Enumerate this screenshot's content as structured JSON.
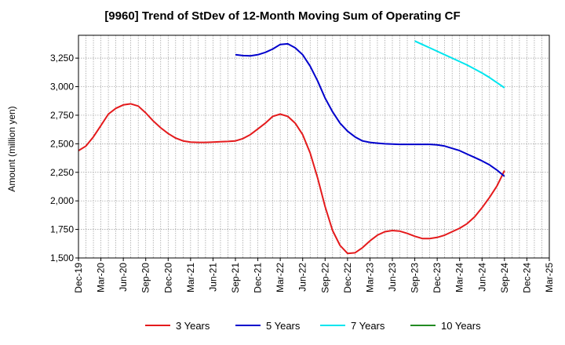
{
  "title": "[9960]  Trend of StDev of 12-Month Moving Sum of Operating CF",
  "chart_data": {
    "type": "line",
    "title": "[9960]  Trend of StDev of 12-Month Moving Sum of Operating CF",
    "xlabel": "",
    "ylabel": "Amount (million yen)",
    "ylim": [
      1500,
      3450
    ],
    "yticks": [
      1500,
      1750,
      2000,
      2250,
      2500,
      2750,
      3000,
      3250
    ],
    "ytick_labels": [
      "1,500",
      "1,750",
      "2,000",
      "2,250",
      "2,500",
      "2,750",
      "3,000",
      "3,250"
    ],
    "x_range": [
      "2019-12",
      "2025-03"
    ],
    "xtick_labels": [
      "Dec-19",
      "Mar-20",
      "Jun-20",
      "Sep-20",
      "Dec-20",
      "Mar-21",
      "Jun-21",
      "Sep-21",
      "Dec-21",
      "Mar-22",
      "Jun-22",
      "Sep-22",
      "Dec-22",
      "Mar-23",
      "Jun-23",
      "Sep-23",
      "Dec-23",
      "Mar-24",
      "Jun-24",
      "Sep-24",
      "Dec-24",
      "Mar-25"
    ],
    "grid": true,
    "legend_position": "bottom",
    "series": [
      {
        "name": "3 Years",
        "color": "#e41a1c",
        "values": [
          [
            "2019-12",
            2440
          ],
          [
            "2020-01",
            2480
          ],
          [
            "2020-02",
            2560
          ],
          [
            "2020-03",
            2660
          ],
          [
            "2020-04",
            2760
          ],
          [
            "2020-05",
            2810
          ],
          [
            "2020-06",
            2840
          ],
          [
            "2020-07",
            2850
          ],
          [
            "2020-08",
            2830
          ],
          [
            "2020-09",
            2770
          ],
          [
            "2020-10",
            2700
          ],
          [
            "2020-11",
            2640
          ],
          [
            "2020-12",
            2590
          ],
          [
            "2021-01",
            2550
          ],
          [
            "2021-02",
            2525
          ],
          [
            "2021-03",
            2515
          ],
          [
            "2021-04",
            2512
          ],
          [
            "2021-05",
            2512
          ],
          [
            "2021-06",
            2515
          ],
          [
            "2021-07",
            2518
          ],
          [
            "2021-08",
            2520
          ],
          [
            "2021-09",
            2525
          ],
          [
            "2021-10",
            2545
          ],
          [
            "2021-11",
            2580
          ],
          [
            "2021-12",
            2630
          ],
          [
            "2022-01",
            2680
          ],
          [
            "2022-02",
            2740
          ],
          [
            "2022-03",
            2760
          ],
          [
            "2022-04",
            2740
          ],
          [
            "2022-05",
            2680
          ],
          [
            "2022-06",
            2580
          ],
          [
            "2022-07",
            2420
          ],
          [
            "2022-08",
            2200
          ],
          [
            "2022-09",
            1950
          ],
          [
            "2022-10",
            1740
          ],
          [
            "2022-11",
            1610
          ],
          [
            "2022-12",
            1540
          ],
          [
            "2023-01",
            1545
          ],
          [
            "2023-02",
            1590
          ],
          [
            "2023-03",
            1650
          ],
          [
            "2023-04",
            1700
          ],
          [
            "2023-05",
            1730
          ],
          [
            "2023-06",
            1740
          ],
          [
            "2023-07",
            1735
          ],
          [
            "2023-08",
            1715
          ],
          [
            "2023-09",
            1690
          ],
          [
            "2023-10",
            1670
          ],
          [
            "2023-11",
            1670
          ],
          [
            "2023-12",
            1680
          ],
          [
            "2024-01",
            1700
          ],
          [
            "2024-02",
            1730
          ],
          [
            "2024-03",
            1760
          ],
          [
            "2024-04",
            1800
          ],
          [
            "2024-05",
            1860
          ],
          [
            "2024-06",
            1940
          ],
          [
            "2024-07",
            2030
          ],
          [
            "2024-08",
            2130
          ],
          [
            "2024-09",
            2265
          ]
        ]
      },
      {
        "name": "5 Years",
        "color": "#0000cc",
        "values": [
          [
            "2021-09",
            3280
          ],
          [
            "2021-10",
            3272
          ],
          [
            "2021-11",
            3270
          ],
          [
            "2021-12",
            3280
          ],
          [
            "2022-01",
            3300
          ],
          [
            "2022-02",
            3330
          ],
          [
            "2022-03",
            3370
          ],
          [
            "2022-04",
            3375
          ],
          [
            "2022-05",
            3340
          ],
          [
            "2022-06",
            3280
          ],
          [
            "2022-07",
            3180
          ],
          [
            "2022-08",
            3050
          ],
          [
            "2022-09",
            2900
          ],
          [
            "2022-10",
            2780
          ],
          [
            "2022-11",
            2680
          ],
          [
            "2022-12",
            2610
          ],
          [
            "2023-01",
            2560
          ],
          [
            "2023-02",
            2525
          ],
          [
            "2023-03",
            2512
          ],
          [
            "2023-04",
            2505
          ],
          [
            "2023-05",
            2500
          ],
          [
            "2023-06",
            2497
          ],
          [
            "2023-07",
            2495
          ],
          [
            "2023-08",
            2495
          ],
          [
            "2023-09",
            2495
          ],
          [
            "2023-10",
            2495
          ],
          [
            "2023-11",
            2495
          ],
          [
            "2023-12",
            2490
          ],
          [
            "2024-01",
            2480
          ],
          [
            "2024-02",
            2460
          ],
          [
            "2024-03",
            2440
          ],
          [
            "2024-04",
            2410
          ],
          [
            "2024-05",
            2380
          ],
          [
            "2024-06",
            2350
          ],
          [
            "2024-07",
            2315
          ],
          [
            "2024-08",
            2270
          ],
          [
            "2024-09",
            2215
          ]
        ]
      },
      {
        "name": "7 Years",
        "color": "#00e5ee",
        "values": [
          [
            "2023-09",
            3400
          ],
          [
            "2023-10",
            3370
          ],
          [
            "2023-11",
            3340
          ],
          [
            "2023-12",
            3310
          ],
          [
            "2024-01",
            3280
          ],
          [
            "2024-02",
            3250
          ],
          [
            "2024-03",
            3220
          ],
          [
            "2024-04",
            3190
          ],
          [
            "2024-05",
            3155
          ],
          [
            "2024-06",
            3120
          ],
          [
            "2024-07",
            3080
          ],
          [
            "2024-08",
            3035
          ],
          [
            "2024-09",
            2990
          ]
        ]
      },
      {
        "name": "10 Years",
        "color": "#228b22",
        "values": []
      }
    ]
  }
}
